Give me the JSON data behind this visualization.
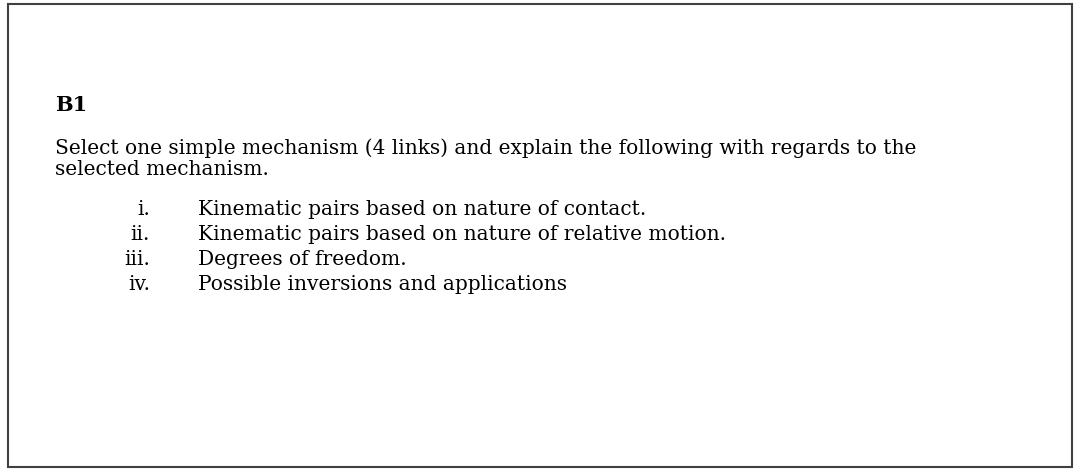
{
  "background_color": "#ffffff",
  "border_color": "#404040",
  "border_linewidth": 1.2,
  "title": "B1",
  "body_line1": "Select one simple mechanism (4 links) and explain the following with regards to the",
  "body_line2": "selected mechanism.",
  "items": [
    {
      "label": "i.",
      "text": "Kinematic pairs based on nature of contact."
    },
    {
      "label": "ii.",
      "text": "Kinematic pairs based on nature of relative motion."
    },
    {
      "label": "iii.",
      "text": "Degrees of freedom."
    },
    {
      "label": "iv.",
      "text": "Possible inversions and applications"
    }
  ],
  "font_family": "DejaVu Serif",
  "title_fontsize": 15,
  "body_fontsize": 14.5,
  "item_fontsize": 14.5
}
